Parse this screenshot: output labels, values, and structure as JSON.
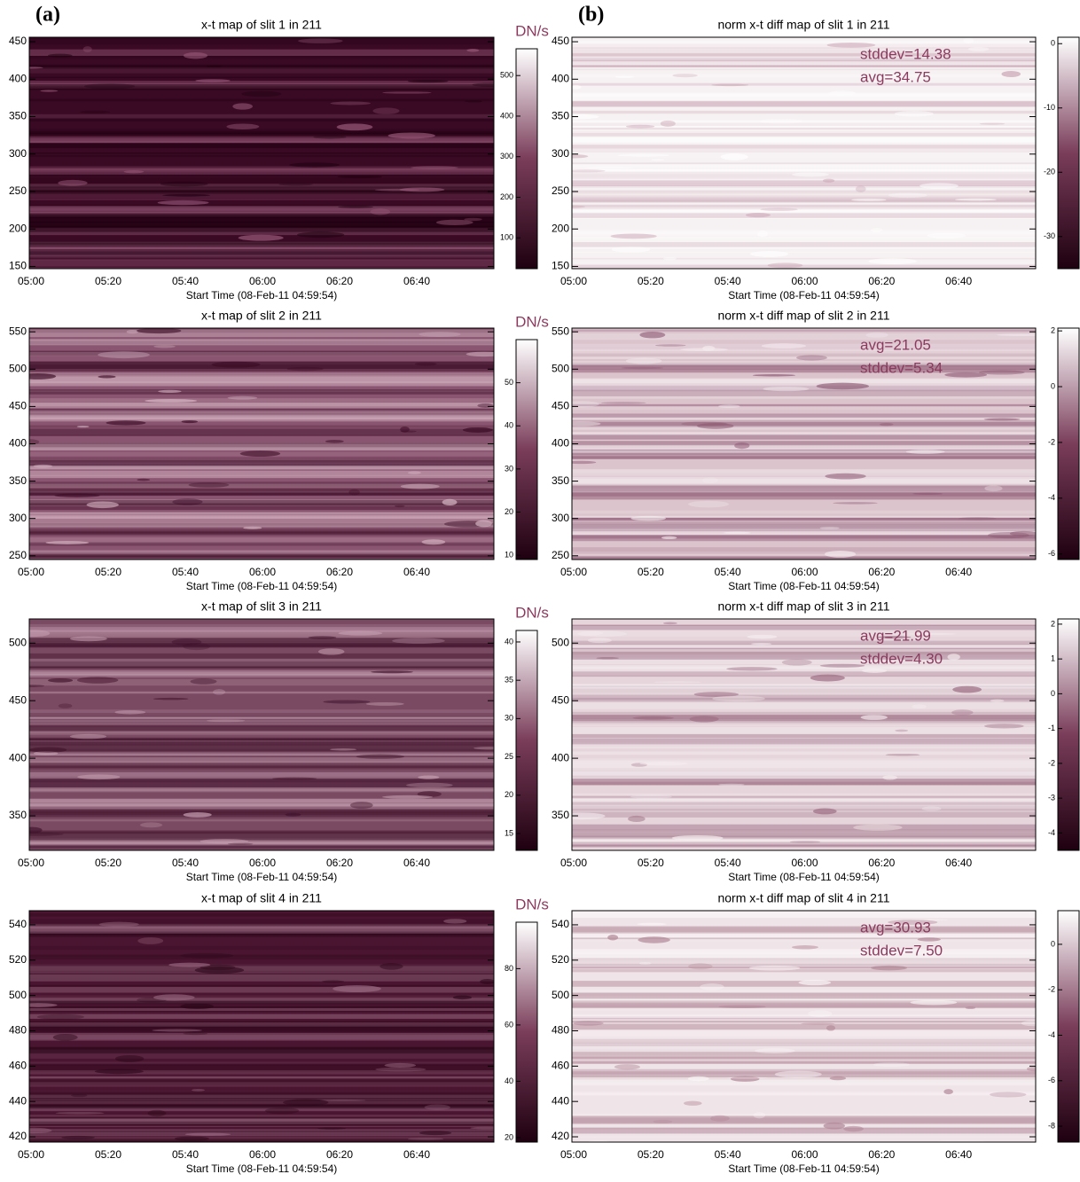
{
  "chart_data": [
    {
      "type": "heatmap",
      "panel_label": "(a)",
      "title": "x-t map of slit 1 in 211",
      "xlabel": "Start Time (08-Feb-11 04:59:54)",
      "xticks": [
        "05:00",
        "05:20",
        "05:40",
        "06:00",
        "06:20",
        "06:40"
      ],
      "ylim": [
        147,
        456
      ],
      "yticks": [
        150,
        200,
        250,
        300,
        350,
        400,
        450
      ],
      "colormap": [
        "#1e0010",
        "#7a3d5a",
        "#ffffff"
      ],
      "colorbar": {
        "label": "DN/s",
        "lim": [
          24,
          566
        ],
        "ticks": [
          100,
          200,
          300,
          400,
          500
        ]
      }
    },
    {
      "type": "heatmap",
      "panel_label": "(b)",
      "title": "norm x-t diff map of slit 1 in 211",
      "xlabel": "Start Time (08-Feb-11 04:59:54)",
      "xticks": [
        "05:00",
        "05:20",
        "05:40",
        "06:00",
        "06:20",
        "06:40"
      ],
      "ylim": [
        147,
        456
      ],
      "yticks": [
        150,
        200,
        250,
        300,
        350,
        400,
        450
      ],
      "annotations": [
        "stddev=14.38",
        "avg=34.75"
      ],
      "colormap": [
        "#1e0010",
        "#7a3d5a",
        "#ffffff"
      ],
      "colorbar": {
        "lim": [
          -35,
          1
        ],
        "ticks": [
          -30,
          -20,
          -10,
          0
        ]
      }
    },
    {
      "type": "heatmap",
      "title": "x-t map of slit 2 in 211",
      "xlabel": "Start Time (08-Feb-11 04:59:54)",
      "xticks": [
        "05:00",
        "05:20",
        "05:40",
        "06:00",
        "06:20",
        "06:40"
      ],
      "ylim": [
        245,
        555
      ],
      "yticks": [
        250,
        300,
        350,
        400,
        450,
        500,
        550
      ],
      "colormap": [
        "#1e0010",
        "#7a3d5a",
        "#ffffff"
      ],
      "colorbar": {
        "label": "DN/s",
        "lim": [
          9,
          60
        ],
        "ticks": [
          10,
          20,
          30,
          40,
          50
        ]
      }
    },
    {
      "type": "heatmap",
      "title": "norm x-t diff map of slit 2 in 211",
      "xlabel": "Start Time (08-Feb-11 04:59:54)",
      "xticks": [
        "05:00",
        "05:20",
        "05:40",
        "06:00",
        "06:20",
        "06:40"
      ],
      "ylim": [
        245,
        555
      ],
      "yticks": [
        250,
        300,
        350,
        400,
        450,
        500,
        550
      ],
      "annotations": [
        "avg=21.05",
        "stddev=5.34"
      ],
      "colormap": [
        "#1e0010",
        "#7a3d5a",
        "#ffffff"
      ],
      "colorbar": {
        "lim": [
          -6.2,
          2.1
        ],
        "ticks": [
          -6,
          -4,
          -2,
          0,
          2
        ]
      }
    },
    {
      "type": "heatmap",
      "title": "x-t map of slit 3 in 211",
      "xlabel": "Start Time (08-Feb-11 04:59:54)",
      "xticks": [
        "05:00",
        "05:20",
        "05:40",
        "06:00",
        "06:20",
        "06:40"
      ],
      "ylim": [
        320,
        521
      ],
      "yticks": [
        350,
        400,
        450,
        500
      ],
      "colormap": [
        "#1e0010",
        "#7a3d5a",
        "#ffffff"
      ],
      "colorbar": {
        "label": "DN/s",
        "lim": [
          12.8,
          41.5
        ],
        "ticks": [
          15,
          20,
          25,
          30,
          35,
          40
        ]
      }
    },
    {
      "type": "heatmap",
      "title": "norm x-t diff map of slit 3 in 211",
      "xlabel": "Start Time (08-Feb-11 04:59:54)",
      "xticks": [
        "05:00",
        "05:20",
        "05:40",
        "06:00",
        "06:20",
        "06:40"
      ],
      "ylim": [
        320,
        521
      ],
      "yticks": [
        350,
        400,
        450,
        500
      ],
      "annotations": [
        "avg=21.99",
        "stddev=4.30"
      ],
      "colormap": [
        "#1e0010",
        "#7a3d5a",
        "#ffffff"
      ],
      "colorbar": {
        "lim": [
          -4.5,
          2.15
        ],
        "ticks": [
          -4,
          -3,
          -2,
          -1,
          0,
          1,
          2
        ]
      }
    },
    {
      "type": "heatmap",
      "title": "x-t map of slit 4 in 211",
      "xlabel": "Start Time (08-Feb-11 04:59:54)",
      "xticks": [
        "05:00",
        "05:20",
        "05:40",
        "06:00",
        "06:20",
        "06:40"
      ],
      "ylim": [
        417,
        548
      ],
      "yticks": [
        420,
        440,
        460,
        480,
        500,
        520,
        540
      ],
      "colormap": [
        "#1e0010",
        "#7a3d5a",
        "#ffffff"
      ],
      "colorbar": {
        "label": "DN/s",
        "lim": [
          18.4,
          96.5
        ],
        "ticks": [
          20,
          40,
          60,
          80
        ]
      }
    },
    {
      "type": "heatmap",
      "title": "norm x-t diff map of slit 4 in 211",
      "xlabel": "Start Time (08-Feb-11 04:59:54)",
      "xticks": [
        "05:00",
        "05:20",
        "05:40",
        "06:00",
        "06:20",
        "06:40"
      ],
      "ylim": [
        417,
        548
      ],
      "yticks": [
        420,
        440,
        460,
        480,
        500,
        520,
        540
      ],
      "annotations": [
        "avg=30.93",
        "stddev=7.50"
      ],
      "colormap": [
        "#1e0010",
        "#7a3d5a",
        "#ffffff"
      ],
      "colorbar": {
        "lim": [
          -8.7,
          1.48
        ],
        "ticks": [
          -8,
          -6,
          -4,
          -2,
          0
        ]
      }
    }
  ]
}
